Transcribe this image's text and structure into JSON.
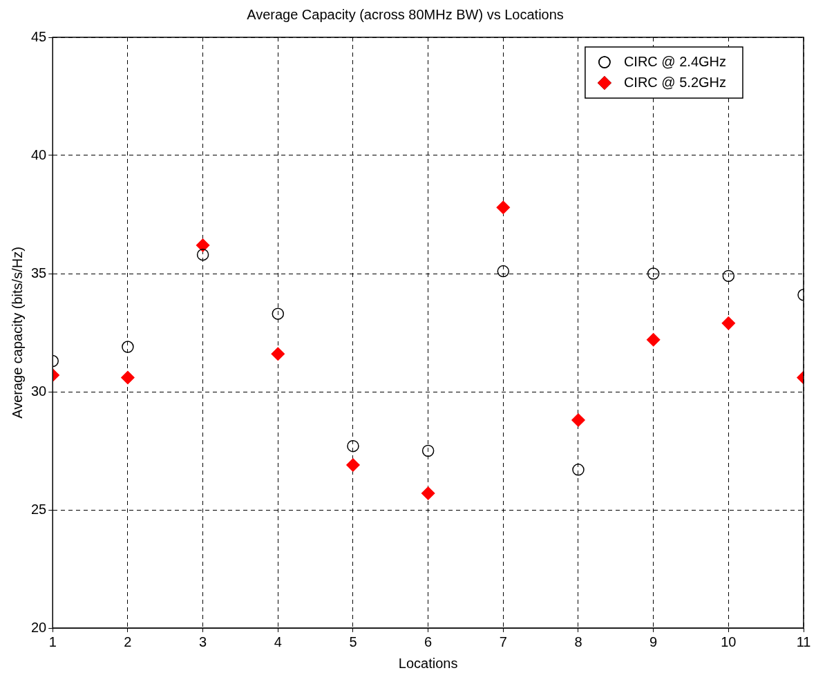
{
  "chart_data": {
    "type": "scatter",
    "title": "Average Capacity (across 80MHz BW) vs Locations",
    "xlabel": "Locations",
    "ylabel": "Average capacity (bits/s/Hz)",
    "x": [
      1,
      2,
      3,
      4,
      5,
      6,
      7,
      8,
      9,
      10,
      11
    ],
    "series": [
      {
        "name": "CIRC @ 2.4GHz",
        "color": "#000000",
        "marker": "circle",
        "values": [
          31.3,
          31.9,
          35.8,
          33.3,
          27.7,
          27.5,
          35.1,
          26.7,
          35.0,
          34.9,
          34.1
        ]
      },
      {
        "name": "CIRC @ 5.2GHz",
        "color": "#ff0000",
        "marker": "diamond",
        "values": [
          30.7,
          30.6,
          36.2,
          31.6,
          26.9,
          25.7,
          37.8,
          28.8,
          32.2,
          32.9,
          30.6
        ]
      }
    ],
    "xlim": [
      1,
      11
    ],
    "xticks": [
      1,
      2,
      3,
      4,
      5,
      6,
      7,
      8,
      9,
      10,
      11
    ],
    "ylim": [
      20,
      45
    ],
    "yticks": [
      20,
      25,
      30,
      35,
      40,
      45
    ],
    "grid": true,
    "line_style": "dashed",
    "legend": "top right"
  }
}
